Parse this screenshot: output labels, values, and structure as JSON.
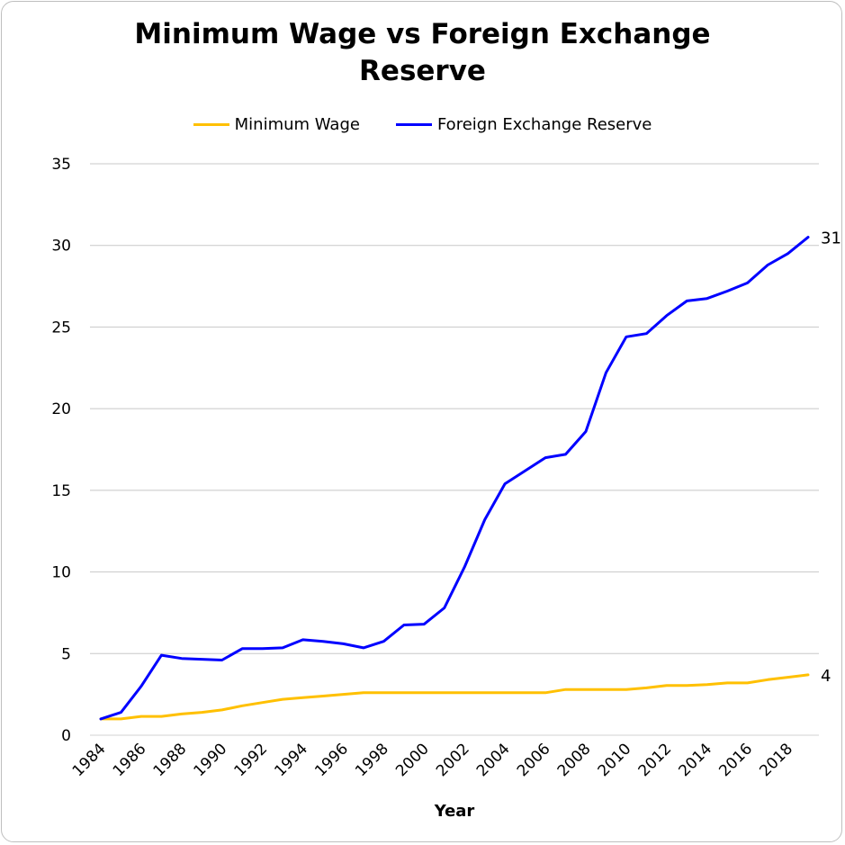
{
  "chart_data": {
    "type": "line",
    "title_lines": [
      "Minimum Wage vs Foreign Exchange",
      "Reserve"
    ],
    "xlabel": "Year",
    "ylabel": "",
    "ylim": [
      0,
      35
    ],
    "yticks": [
      0,
      5,
      10,
      15,
      20,
      25,
      30,
      35
    ],
    "x": [
      1984,
      1985,
      1986,
      1987,
      1988,
      1989,
      1990,
      1991,
      1992,
      1993,
      1994,
      1995,
      1996,
      1997,
      1998,
      1999,
      2000,
      2001,
      2002,
      2003,
      2004,
      2005,
      2006,
      2007,
      2008,
      2009,
      2010,
      2011,
      2012,
      2013,
      2014,
      2015,
      2016,
      2017,
      2018,
      2019
    ],
    "x_tick_labels": [
      "1984",
      "1986",
      "1988",
      "1990",
      "1992",
      "1994",
      "1996",
      "1998",
      "2000",
      "2002",
      "2004",
      "2006",
      "2008",
      "2010",
      "2012",
      "2014",
      "2016",
      "2018"
    ],
    "grid": true,
    "legend_position": "top",
    "series": [
      {
        "name": "Minimum Wage",
        "color": "#FFC000",
        "end_label": "4",
        "values": [
          1.0,
          1.0,
          1.15,
          1.15,
          1.3,
          1.4,
          1.55,
          1.8,
          2.0,
          2.2,
          2.3,
          2.4,
          2.5,
          2.6,
          2.6,
          2.6,
          2.6,
          2.6,
          2.6,
          2.6,
          2.6,
          2.6,
          2.6,
          2.8,
          2.8,
          2.8,
          2.8,
          2.9,
          3.05,
          3.05,
          3.1,
          3.2,
          3.2,
          3.4,
          3.55,
          3.7
        ]
      },
      {
        "name": "Foreign Exchange Reserve",
        "color": "#0000FF",
        "end_label": "31",
        "values": [
          1.0,
          1.4,
          3.0,
          4.9,
          4.7,
          4.65,
          4.6,
          5.3,
          5.3,
          5.35,
          5.85,
          5.75,
          5.6,
          5.35,
          5.75,
          6.75,
          6.8,
          7.8,
          10.3,
          13.2,
          15.4,
          16.2,
          17.0,
          17.2,
          18.6,
          22.2,
          24.4,
          24.6,
          25.7,
          26.6,
          26.75,
          27.2,
          27.7,
          28.8,
          29.5,
          30.5
        ]
      }
    ]
  }
}
